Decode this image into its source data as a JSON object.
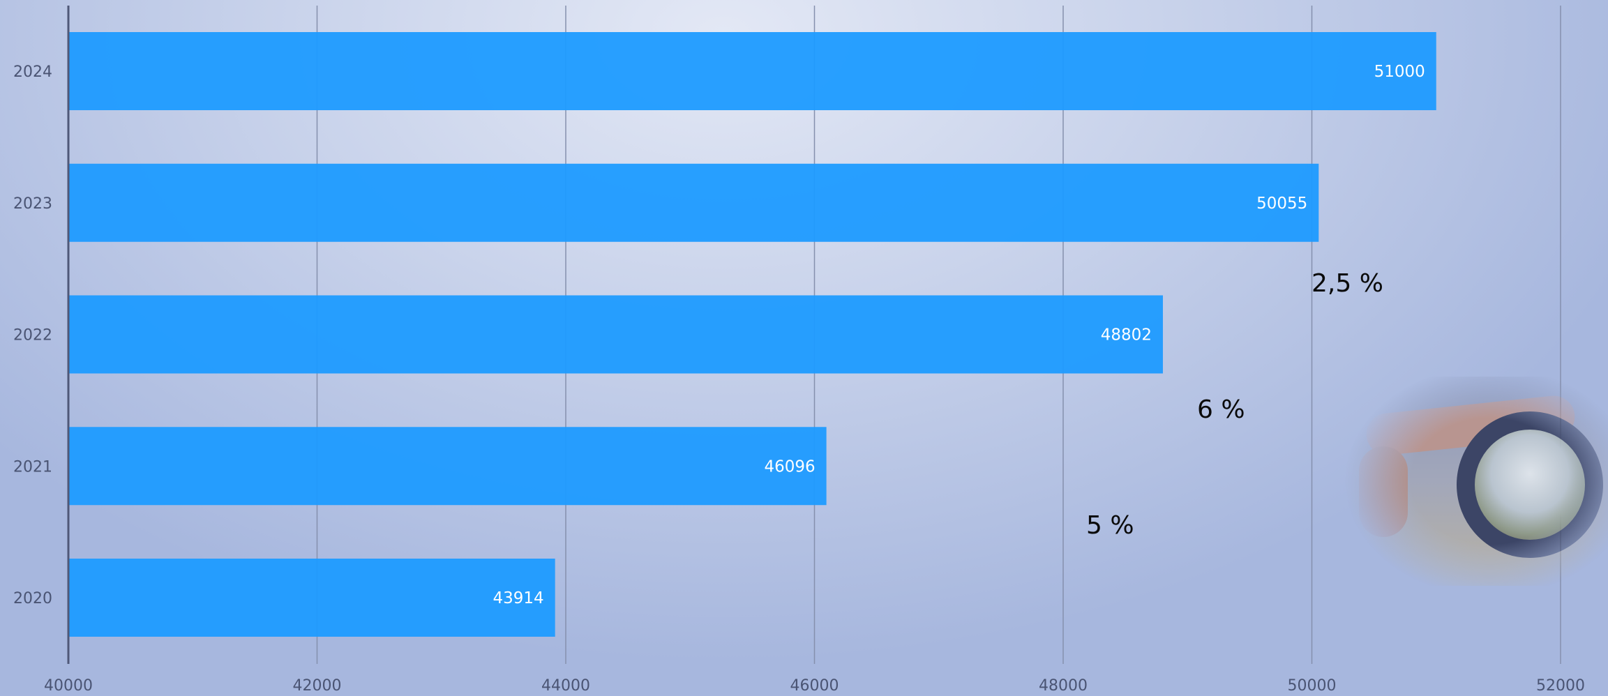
{
  "chart_data": {
    "type": "bar",
    "orientation": "horizontal",
    "categories": [
      "2024",
      "2023",
      "2022",
      "2021",
      "2020"
    ],
    "values": [
      51000,
      50055,
      48802,
      46096,
      43914
    ],
    "data_labels": [
      "51000",
      "50055",
      "48802",
      "46096",
      "43914"
    ],
    "xlim": [
      40000,
      52000
    ],
    "xticks": [
      "40000",
      "42000",
      "44000",
      "46000",
      "48000",
      "50000",
      "52000"
    ],
    "grid": "vertical",
    "bar_color": "#1e9bff",
    "annotations": [
      {
        "text": "2,5 %"
      },
      {
        "text": "6 %"
      },
      {
        "text": "5 %"
      }
    ]
  },
  "photo": {
    "icon": "lens-ball-landscape-photo"
  }
}
